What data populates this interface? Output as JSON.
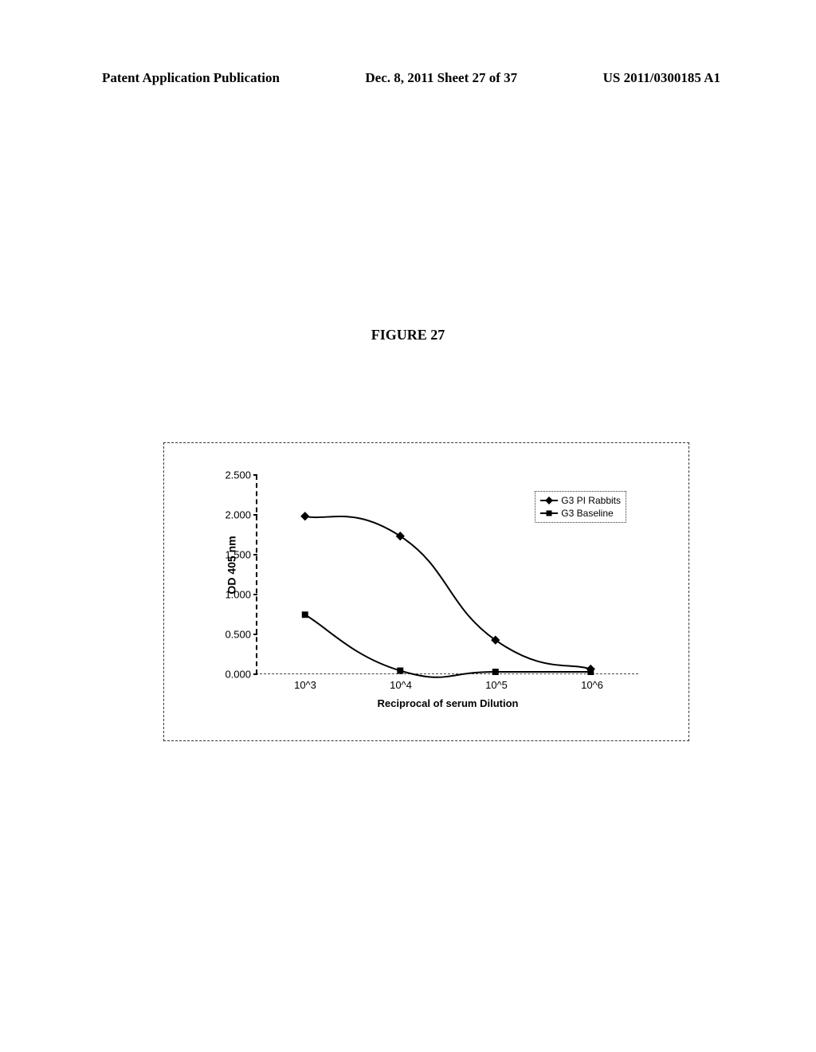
{
  "header": {
    "left": "Patent Application Publication",
    "center": "Dec. 8, 2011  Sheet 27 of 37",
    "right": "US 2011/0300185 A1"
  },
  "figure_title": "FIGURE 27",
  "chart": {
    "type": "line",
    "ylabel": "OD 405 nm",
    "xlabel": "Reciprocal of serum Dilution",
    "ylim": [
      0.0,
      2.5
    ],
    "yticks": [
      0.0,
      0.5,
      1.0,
      1.5,
      2.0,
      2.5
    ],
    "ytick_labels": [
      "0.000",
      "0.500",
      "1.000",
      "1.500",
      "2.000",
      "2.500"
    ],
    "x_categories": [
      "10^3",
      "10^4",
      "10^5",
      "10^6"
    ],
    "series": [
      {
        "name": "G3 PI Rabbits",
        "marker": "diamond",
        "color": "#000000",
        "values": [
          1.98,
          1.73,
          0.42,
          0.055
        ]
      },
      {
        "name": "G3 Baseline",
        "marker": "square",
        "color": "#000000",
        "values": [
          0.74,
          0.035,
          0.02,
          0.02
        ]
      }
    ],
    "line_width": 2,
    "marker_size": 8,
    "background_color": "#ffffff",
    "legend_position": "top-right"
  }
}
